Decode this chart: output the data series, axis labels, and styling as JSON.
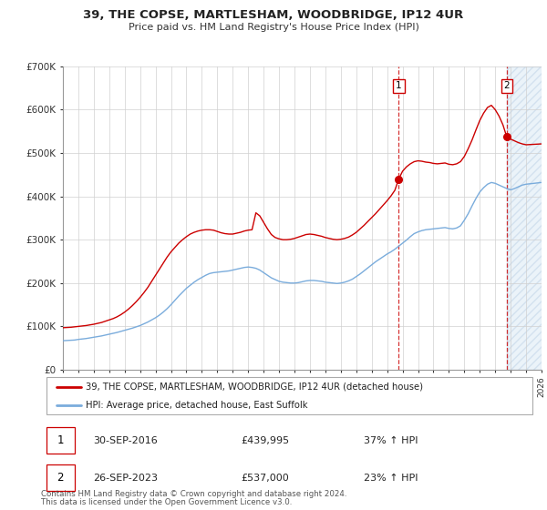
{
  "title": "39, THE COPSE, MARTLESHAM, WOODBRIDGE, IP12 4UR",
  "subtitle": "Price paid vs. HM Land Registry's House Price Index (HPI)",
  "ylim": [
    0,
    700000
  ],
  "yticks": [
    0,
    100000,
    200000,
    300000,
    400000,
    500000,
    600000,
    700000
  ],
  "ytick_labels": [
    "£0",
    "£100K",
    "£200K",
    "£300K",
    "£400K",
    "£500K",
    "£600K",
    "£700K"
  ],
  "xlim": [
    1995,
    2026
  ],
  "legend_line1": "39, THE COPSE, MARTLESHAM, WOODBRIDGE, IP12 4UR (detached house)",
  "legend_line2": "HPI: Average price, detached house, East Suffolk",
  "marker1_date": "30-SEP-2016",
  "marker1_price": "£439,995",
  "marker1_hpi": "37% ↑ HPI",
  "marker2_date": "26-SEP-2023",
  "marker2_price": "£537,000",
  "marker2_hpi": "23% ↑ HPI",
  "footer1": "Contains HM Land Registry data © Crown copyright and database right 2024.",
  "footer2": "This data is licensed under the Open Government Licence v3.0.",
  "red_color": "#cc0000",
  "blue_color": "#7aacdc",
  "marker1_x": 2016.75,
  "marker1_y": 439995,
  "marker2_x": 2023.75,
  "marker2_y": 537000,
  "shade_start": 2023.75,
  "shade_end": 2026,
  "hpi_years": [
    1995,
    1995.25,
    1995.5,
    1995.75,
    1996,
    1996.25,
    1996.5,
    1996.75,
    1997,
    1997.25,
    1997.5,
    1997.75,
    1998,
    1998.25,
    1998.5,
    1998.75,
    1999,
    1999.25,
    1999.5,
    1999.75,
    2000,
    2000.25,
    2000.5,
    2000.75,
    2001,
    2001.25,
    2001.5,
    2001.75,
    2002,
    2002.25,
    2002.5,
    2002.75,
    2003,
    2003.25,
    2003.5,
    2003.75,
    2004,
    2004.25,
    2004.5,
    2004.75,
    2005,
    2005.25,
    2005.5,
    2005.75,
    2006,
    2006.25,
    2006.5,
    2006.75,
    2007,
    2007.25,
    2007.5,
    2007.75,
    2008,
    2008.25,
    2008.5,
    2008.75,
    2009,
    2009.25,
    2009.5,
    2009.75,
    2010,
    2010.25,
    2010.5,
    2010.75,
    2011,
    2011.25,
    2011.5,
    2011.75,
    2012,
    2012.25,
    2012.5,
    2012.75,
    2013,
    2013.25,
    2013.5,
    2013.75,
    2014,
    2014.25,
    2014.5,
    2014.75,
    2015,
    2015.25,
    2015.5,
    2015.75,
    2016,
    2016.25,
    2016.5,
    2016.75,
    2017,
    2017.25,
    2017.5,
    2017.75,
    2018,
    2018.25,
    2018.5,
    2018.75,
    2019,
    2019.25,
    2019.5,
    2019.75,
    2020,
    2020.25,
    2020.5,
    2020.75,
    2021,
    2021.25,
    2021.5,
    2021.75,
    2022,
    2022.25,
    2022.5,
    2022.75,
    2023,
    2023.25,
    2023.5,
    2023.75,
    2024,
    2024.25,
    2024.5,
    2024.75,
    2025,
    2025.5,
    2026
  ],
  "hpi_vals": [
    67000,
    67500,
    68000,
    68500,
    70000,
    71000,
    72000,
    73500,
    75000,
    76500,
    78000,
    80000,
    82000,
    84000,
    86000,
    88500,
    91000,
    93500,
    96000,
    99000,
    102000,
    106000,
    110000,
    115000,
    120000,
    126000,
    133000,
    141000,
    150000,
    160000,
    170000,
    179000,
    188000,
    195000,
    202000,
    208000,
    213000,
    218000,
    222000,
    224000,
    225000,
    226000,
    227000,
    228000,
    230000,
    232000,
    234000,
    236000,
    237000,
    236000,
    234000,
    230000,
    224000,
    218000,
    212000,
    208000,
    204000,
    202000,
    201000,
    200000,
    200000,
    201000,
    203000,
    205000,
    206000,
    206000,
    205000,
    204000,
    202000,
    201000,
    200000,
    199000,
    200000,
    202000,
    205000,
    209000,
    215000,
    221000,
    228000,
    235000,
    242000,
    249000,
    255000,
    261000,
    267000,
    272000,
    278000,
    285000,
    292000,
    299000,
    307000,
    314000,
    318000,
    321000,
    323000,
    324000,
    325000,
    326000,
    327000,
    328000,
    326000,
    325000,
    327000,
    332000,
    345000,
    360000,
    378000,
    395000,
    410000,
    420000,
    428000,
    432000,
    430000,
    426000,
    422000,
    418000,
    415000,
    418000,
    422000,
    426000,
    428000,
    430000,
    432000
  ],
  "red_years": [
    1995,
    1995.25,
    1995.5,
    1995.75,
    1996,
    1996.25,
    1996.5,
    1996.75,
    1997,
    1997.25,
    1997.5,
    1997.75,
    1998,
    1998.25,
    1998.5,
    1998.75,
    1999,
    1999.25,
    1999.5,
    1999.75,
    2000,
    2000.25,
    2000.5,
    2000.75,
    2001,
    2001.25,
    2001.5,
    2001.75,
    2002,
    2002.25,
    2002.5,
    2002.75,
    2003,
    2003.25,
    2003.5,
    2003.75,
    2004,
    2004.25,
    2004.5,
    2004.75,
    2005,
    2005.25,
    2005.5,
    2005.75,
    2006,
    2006.25,
    2006.5,
    2006.75,
    2007,
    2007.25,
    2007.5,
    2007.75,
    2008,
    2008.25,
    2008.5,
    2008.75,
    2009,
    2009.25,
    2009.5,
    2009.75,
    2010,
    2010.25,
    2010.5,
    2010.75,
    2011,
    2011.25,
    2011.5,
    2011.75,
    2012,
    2012.25,
    2012.5,
    2012.75,
    2013,
    2013.25,
    2013.5,
    2013.75,
    2014,
    2014.25,
    2014.5,
    2014.75,
    2015,
    2015.25,
    2015.5,
    2015.75,
    2016,
    2016.25,
    2016.5,
    2016.75,
    2017,
    2017.25,
    2017.5,
    2017.75,
    2018,
    2018.25,
    2018.5,
    2018.75,
    2019,
    2019.25,
    2019.5,
    2019.75,
    2020,
    2020.25,
    2020.5,
    2020.75,
    2021,
    2021.25,
    2021.5,
    2021.75,
    2022,
    2022.25,
    2022.5,
    2022.75,
    2023,
    2023.25,
    2023.5,
    2023.75,
    2024,
    2024.25,
    2024.5,
    2024.75,
    2025,
    2025.5,
    2026
  ],
  "red_vals": [
    97000,
    97500,
    98000,
    99000,
    100000,
    101000,
    102000,
    103500,
    105000,
    107000,
    109000,
    112000,
    115000,
    118000,
    122000,
    127000,
    133000,
    140000,
    148000,
    157000,
    167000,
    178000,
    190000,
    204000,
    218000,
    232000,
    246000,
    260000,
    272000,
    282000,
    292000,
    300000,
    307000,
    313000,
    317000,
    320000,
    322000,
    323000,
    323000,
    322000,
    319000,
    316000,
    314000,
    313000,
    313000,
    315000,
    317000,
    320000,
    322000,
    323000,
    362000,
    355000,
    340000,
    325000,
    312000,
    305000,
    302000,
    300000,
    300000,
    301000,
    303000,
    306000,
    309000,
    312000,
    313000,
    312000,
    310000,
    308000,
    305000,
    303000,
    301000,
    300000,
    301000,
    303000,
    306000,
    311000,
    317000,
    325000,
    333000,
    342000,
    351000,
    360000,
    370000,
    380000,
    390000,
    401000,
    414000,
    439995,
    458000,
    468000,
    475000,
    480000,
    482000,
    481000,
    479000,
    478000,
    476000,
    475000,
    476000,
    477000,
    474000,
    473000,
    475000,
    480000,
    492000,
    510000,
    530000,
    553000,
    575000,
    592000,
    605000,
    610000,
    600000,
    585000,
    565000,
    537000,
    532000,
    528000,
    524000,
    521000,
    519000,
    520000,
    521000
  ]
}
